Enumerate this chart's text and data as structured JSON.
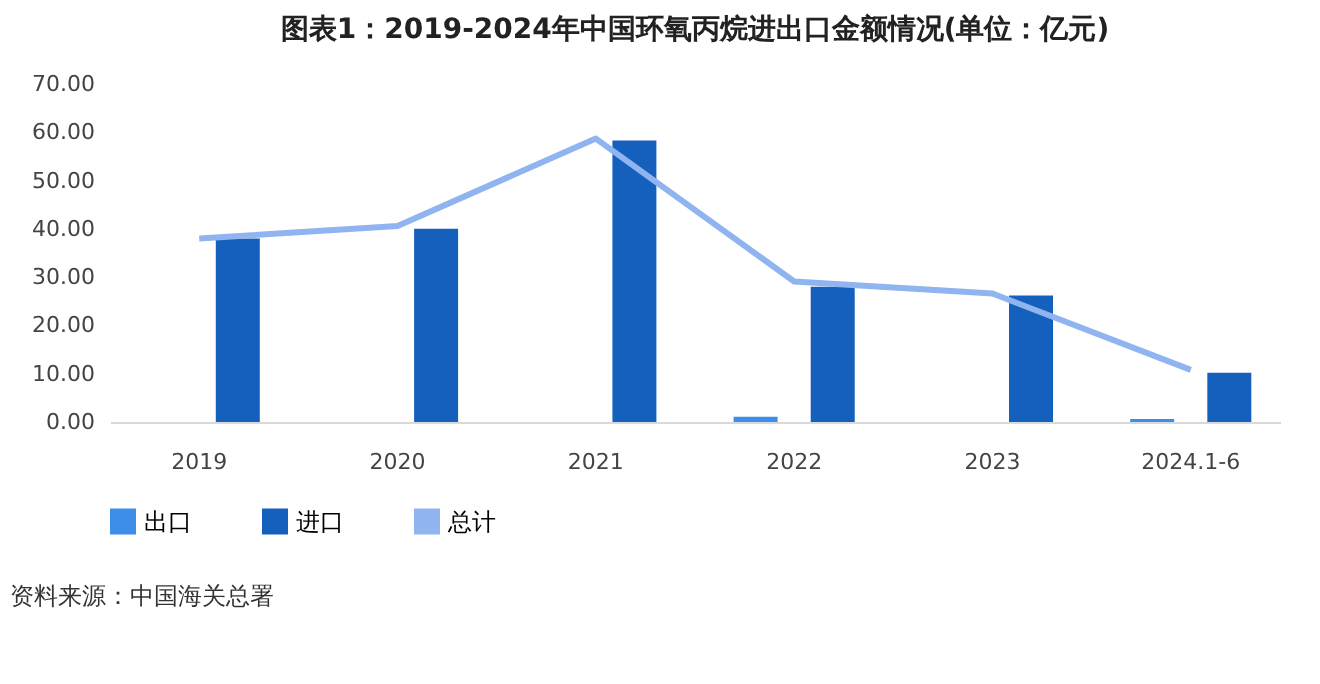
{
  "chart_data": {
    "type": "bar",
    "title": "图表1：2019-2024年中国环氧丙烷进出口金额情况(单位：亿元)",
    "categories": [
      "2019",
      "2020",
      "2021",
      "2022",
      "2023",
      "2024.1-6"
    ],
    "series": [
      {
        "name": "出口",
        "color": "#3d8ee8",
        "values": [
          0,
          0,
          0,
          1.1,
          0,
          0.6
        ]
      },
      {
        "name": "进口",
        "color": "#1560bd",
        "values": [
          38.0,
          40.0,
          58.3,
          28.0,
          26.2,
          10.2
        ]
      },
      {
        "name": "总计",
        "type": "line",
        "color": "#8fb4ef",
        "values": [
          38.0,
          40.6,
          58.7,
          29.1,
          26.6,
          10.8
        ]
      }
    ],
    "ylim": [
      0,
      70
    ],
    "yticks": [
      {
        "value": 0,
        "label": "0.00"
      },
      {
        "value": 10,
        "label": "10.00"
      },
      {
        "value": 20,
        "label": "20.00"
      },
      {
        "value": 30,
        "label": "30.00"
      },
      {
        "value": 40,
        "label": "40.00"
      },
      {
        "value": 50,
        "label": "50.00"
      },
      {
        "value": 60,
        "label": "60.00"
      },
      {
        "value": 70,
        "label": "70.00"
      }
    ],
    "grid": false,
    "legend": "bottom",
    "marker": "none",
    "annotations": [
      "资料来源：中国海关总署"
    ]
  }
}
